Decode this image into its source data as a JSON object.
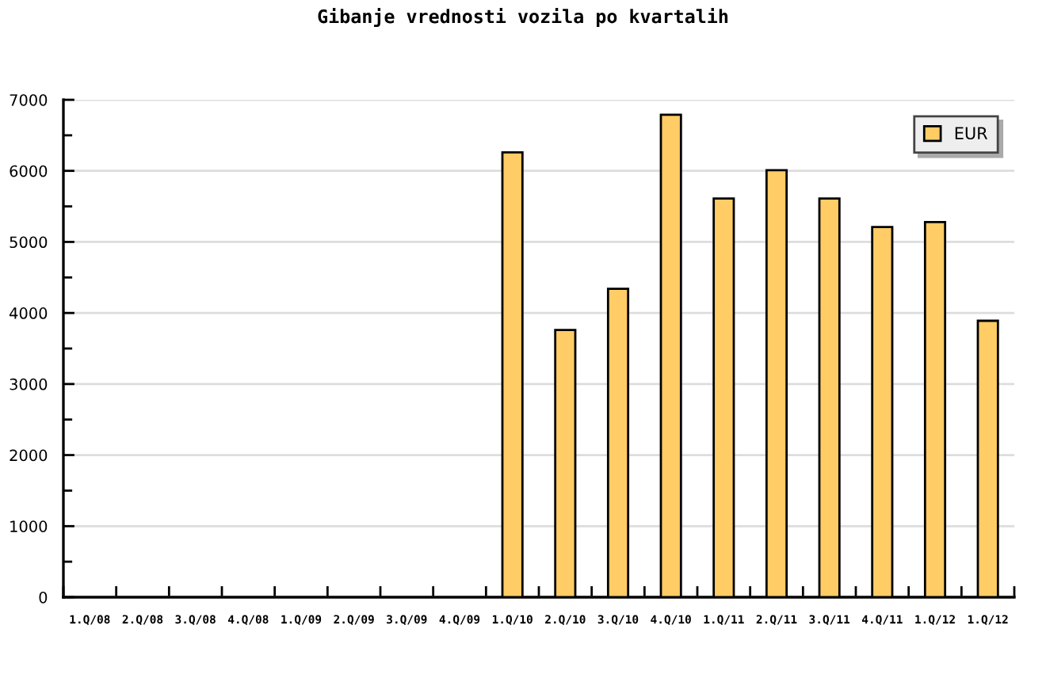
{
  "chart_data": {
    "type": "bar",
    "title": "Gibanje vrednosti vozila po kvartalih",
    "categories": [
      "1.Q/08",
      "2.Q/08",
      "3.Q/08",
      "4.Q/08",
      "1.Q/09",
      "2.Q/09",
      "3.Q/09",
      "4.Q/09",
      "1.Q/10",
      "2.Q/10",
      "3.Q/10",
      "4.Q/10",
      "1.Q/11",
      "2.Q/11",
      "3.Q/11",
      "4.Q/11",
      "1.Q/12",
      "1.Q/12"
    ],
    "series": [
      {
        "name": "EUR",
        "color": "#ffcc66",
        "values": [
          null,
          null,
          null,
          null,
          null,
          null,
          null,
          null,
          6260,
          3760,
          4340,
          6790,
          5610,
          6010,
          5610,
          5210,
          5280,
          3890
        ]
      }
    ],
    "ylim": [
      0,
      7000
    ],
    "yticks": [
      0,
      {
        "value": 500,
        "label": null
      },
      1000,
      {
        "value": 1500,
        "label": null
      },
      2000,
      {
        "value": 2500,
        "label": null
      },
      3000,
      {
        "value": 3500,
        "label": null
      },
      4000,
      {
        "value": 4500,
        "label": null
      },
      5000,
      {
        "value": 5500,
        "label": null
      },
      6000,
      {
        "value": 6500,
        "label": null
      },
      7000
    ],
    "grid": "y",
    "legend": "top right"
  }
}
